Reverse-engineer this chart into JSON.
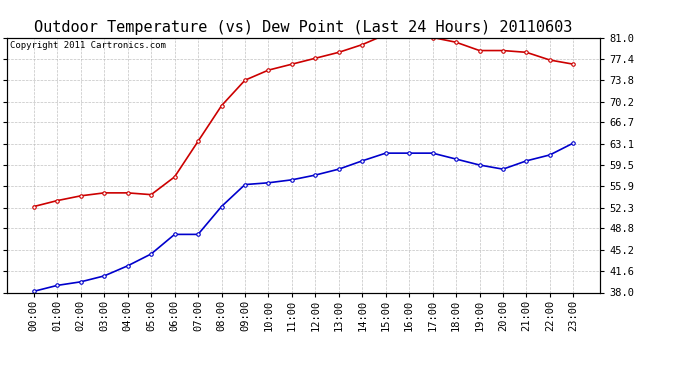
{
  "title": "Outdoor Temperature (vs) Dew Point (Last 24 Hours) 20110603",
  "copyright": "Copyright 2011 Cartronics.com",
  "x_labels": [
    "00:00",
    "01:00",
    "02:00",
    "03:00",
    "04:00",
    "05:00",
    "06:00",
    "07:00",
    "08:00",
    "09:00",
    "10:00",
    "11:00",
    "12:00",
    "13:00",
    "14:00",
    "15:00",
    "16:00",
    "17:00",
    "18:00",
    "19:00",
    "20:00",
    "21:00",
    "22:00",
    "23:00"
  ],
  "temp_data": [
    52.5,
    53.5,
    54.3,
    54.8,
    54.8,
    54.5,
    57.5,
    63.5,
    69.5,
    73.8,
    75.5,
    76.5,
    77.5,
    78.5,
    79.8,
    81.5,
    81.3,
    81.0,
    80.2,
    78.8,
    78.8,
    78.5,
    77.2,
    76.5
  ],
  "dew_data": [
    38.2,
    39.2,
    39.8,
    40.8,
    42.5,
    44.5,
    47.8,
    47.8,
    52.5,
    56.2,
    56.5,
    57.0,
    57.8,
    58.8,
    60.2,
    61.5,
    61.5,
    61.5,
    60.5,
    59.5,
    58.8,
    60.2,
    61.2,
    63.2
  ],
  "temp_color": "#cc0000",
  "dew_color": "#0000cc",
  "bg_color": "#ffffff",
  "grid_color": "#bbbbbb",
  "ylim_min": 38.0,
  "ylim_max": 81.0,
  "yticks": [
    38.0,
    41.6,
    45.2,
    48.8,
    52.3,
    55.9,
    59.5,
    63.1,
    66.7,
    70.2,
    73.8,
    77.4,
    81.0
  ],
  "title_fontsize": 11,
  "copyright_fontsize": 6.5,
  "tick_fontsize": 7.5,
  "marker": "o",
  "marker_size": 2.5,
  "linewidth": 1.2
}
